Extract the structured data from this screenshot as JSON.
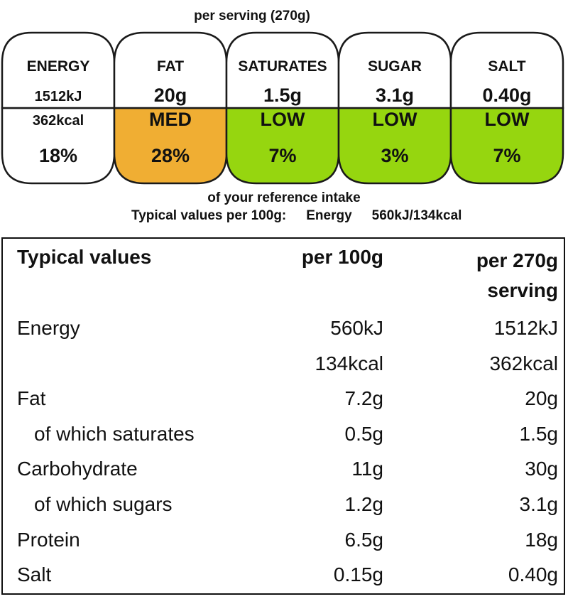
{
  "serving_label": "per serving  (270g)",
  "gda": [
    {
      "name": "ENERGY",
      "line1": "1512kJ",
      "line2": "362kcal",
      "pct": "18%",
      "color": "#ffffff"
    },
    {
      "name": "FAT",
      "line1": "20g",
      "line2": "MED",
      "pct": "28%",
      "color": "#f0ae33"
    },
    {
      "name": "SATURATES",
      "line1": "1.5g",
      "line2": "LOW",
      "pct": "7%",
      "color": "#96d60f"
    },
    {
      "name": "SUGAR",
      "line1": "3.1g",
      "line2": "LOW",
      "pct": "3%",
      "color": "#96d60f"
    },
    {
      "name": "SALT",
      "line1": "0.40g",
      "line2": "LOW",
      "pct": "7%",
      "color": "#96d60f"
    }
  ],
  "reference_intake_label": "of your reference intake",
  "typical_per_100g": {
    "label": "Typical values per 100g:",
    "energy_label": "Energy",
    "energy_value": "560kJ/134kcal"
  },
  "table": {
    "header": {
      "label": "Typical values",
      "col1": "per 100g",
      "col2_line1": "per 270g",
      "col2_line2": "serving"
    },
    "rows": [
      {
        "label": "Energy",
        "per100": "560kJ",
        "perServing": "1512kJ",
        "indent": false
      },
      {
        "label": "",
        "per100": "134kcal",
        "perServing": "362kcal",
        "indent": false
      },
      {
        "label": "Fat",
        "per100": "7.2g",
        "perServing": "20g",
        "indent": false
      },
      {
        "label": "of which saturates",
        "per100": "0.5g",
        "perServing": "1.5g",
        "indent": true
      },
      {
        "label": "Carbohydrate",
        "per100": "11g",
        "perServing": "30g",
        "indent": false
      },
      {
        "label": "of which sugars",
        "per100": "1.2g",
        "perServing": "3.1g",
        "indent": true
      },
      {
        "label": "Protein",
        "per100": "6.5g",
        "perServing": "18g",
        "indent": false
      },
      {
        "label": "Salt",
        "per100": "0.15g",
        "perServing": "0.40g",
        "indent": false
      }
    ]
  }
}
